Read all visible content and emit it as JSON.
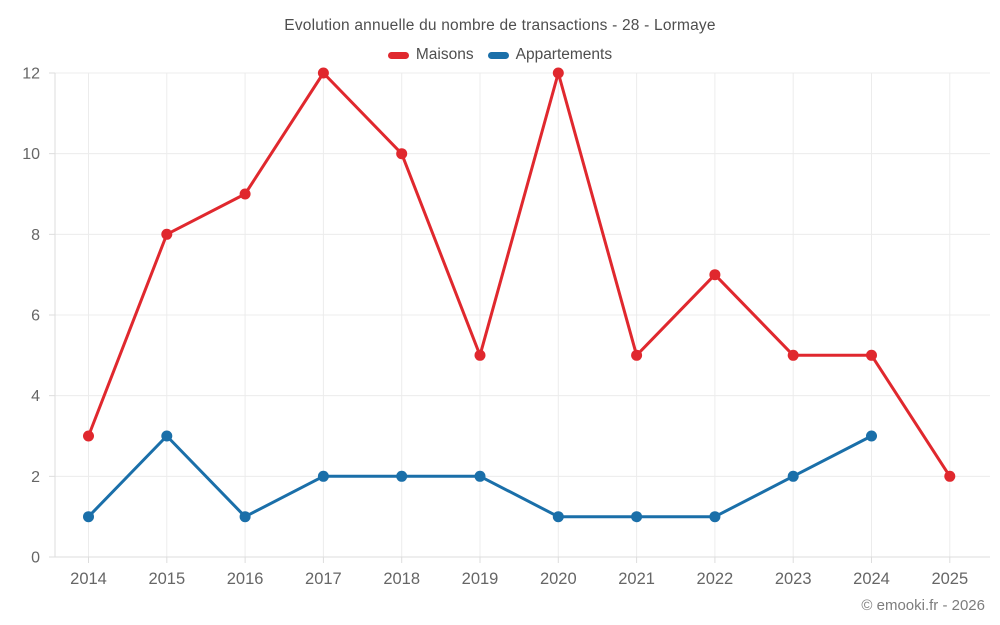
{
  "chart_data": {
    "type": "line",
    "title": "Evolution annuelle du nombre de transactions - 28 - Lormaye",
    "categories": [
      "2014",
      "2015",
      "2016",
      "2017",
      "2018",
      "2019",
      "2020",
      "2021",
      "2022",
      "2023",
      "2024",
      "2025"
    ],
    "series": [
      {
        "name": "Maisons",
        "color": "#e0282e",
        "values": [
          3,
          8,
          9,
          12,
          10,
          5,
          12,
          5,
          7,
          5,
          5,
          2
        ]
      },
      {
        "name": "Appartements",
        "color": "#1a6fa9",
        "values": [
          1,
          3,
          1,
          2,
          2,
          2,
          1,
          1,
          1,
          2,
          3,
          null
        ]
      }
    ],
    "yticks": [
      0,
      2,
      4,
      6,
      8,
      10,
      12
    ],
    "ylim": [
      0,
      12
    ],
    "grid": true,
    "legend_position": "top",
    "grid_color": "#ececec",
    "axis_color": "#dddddd",
    "tick_label_color": "#666666"
  },
  "footer": {
    "text": "© emooki.fr - 2026"
  }
}
